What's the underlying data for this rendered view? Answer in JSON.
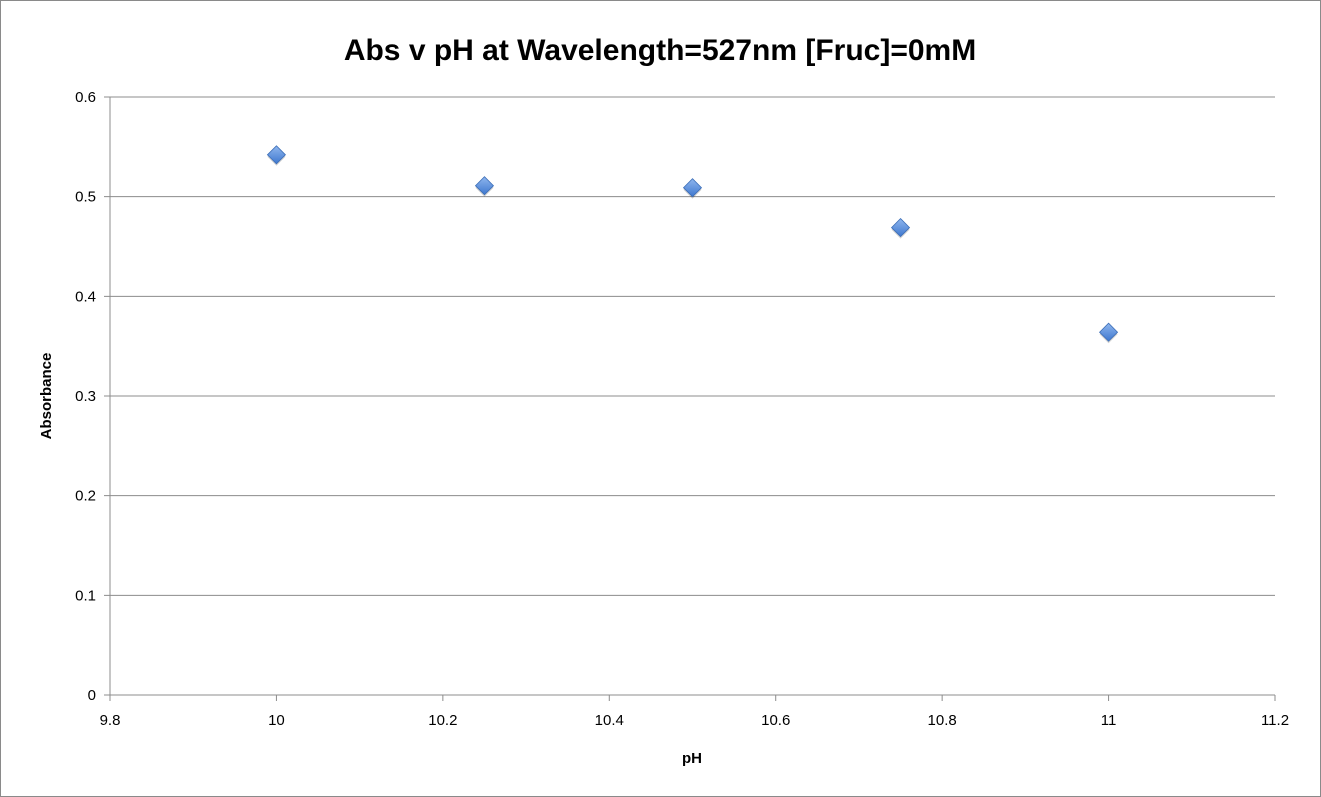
{
  "chart_data": {
    "type": "scatter",
    "title": "Abs v pH at Wavelength=527nm [Fruc]=0mM",
    "xlabel": "pH",
    "ylabel": "Absorbance",
    "xlim": [
      9.8,
      11.2
    ],
    "ylim": [
      0,
      0.6
    ],
    "xticks": [
      "9.8",
      "10",
      "10.2",
      "10.4",
      "10.6",
      "10.8",
      "11",
      "11.2"
    ],
    "yticks": [
      "0",
      "0.1",
      "0.2",
      "0.3",
      "0.4",
      "0.5",
      "0.6"
    ],
    "grid": "horizontal",
    "legend": "none",
    "marker_color": "#5b8fd9",
    "series": [
      {
        "name": "Absorbance",
        "x": [
          10,
          10.25,
          10.5,
          10.75,
          11
        ],
        "y": [
          0.542,
          0.511,
          0.509,
          0.469,
          0.364
        ]
      }
    ]
  }
}
